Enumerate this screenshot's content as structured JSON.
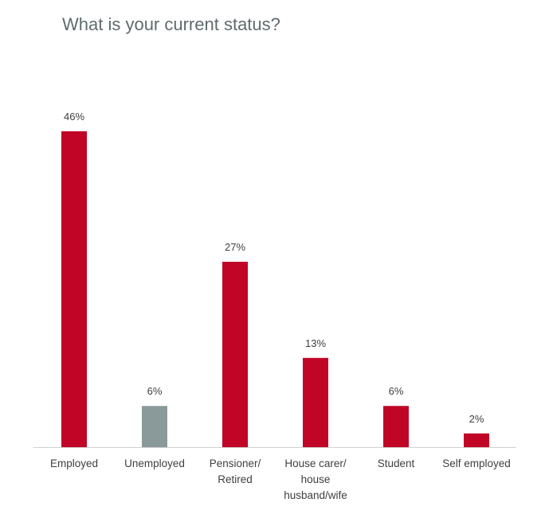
{
  "chart_data": {
    "type": "bar",
    "title": "What is your current status?",
    "categories": [
      "Employed",
      "Unemployed",
      "Pensioner/ Retired",
      "House carer/ house husband/wife",
      "Student",
      "Self employed"
    ],
    "values": [
      46,
      6,
      27,
      13,
      6,
      2
    ],
    "value_labels": [
      "46%",
      "6%",
      "27%",
      "13%",
      "6%",
      "2%"
    ],
    "colors": [
      "#c00527",
      "#8a9a9a",
      "#c00527",
      "#c00527",
      "#c00527",
      "#c00527"
    ]
  }
}
